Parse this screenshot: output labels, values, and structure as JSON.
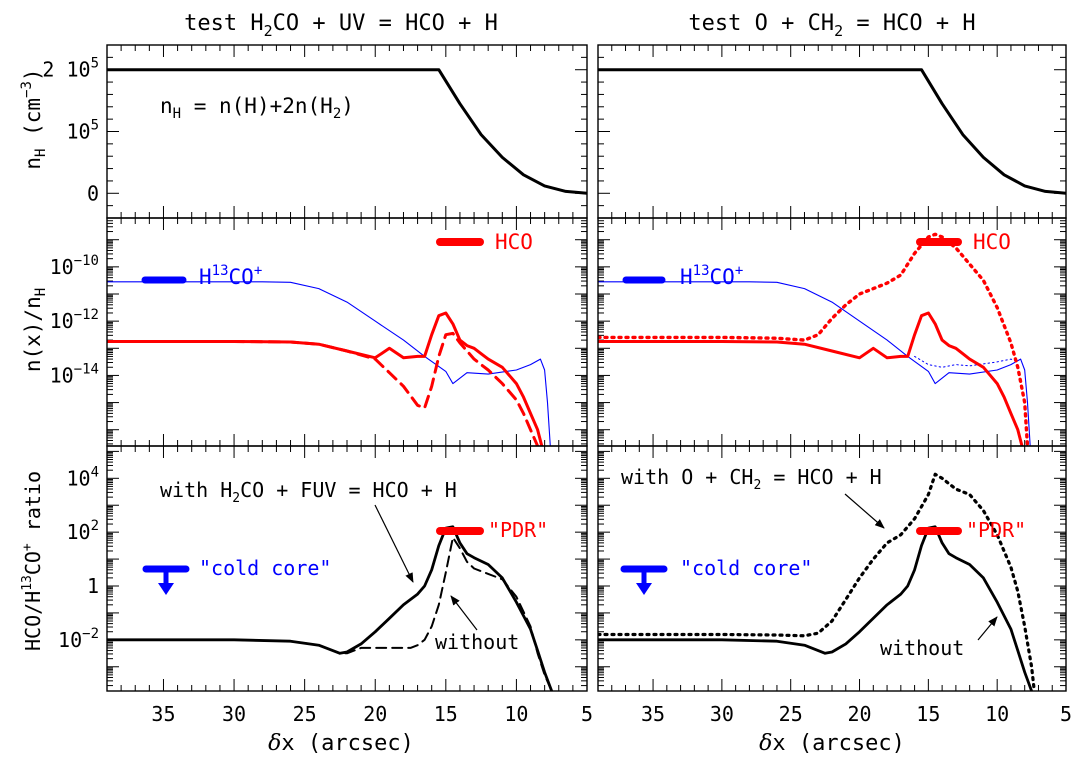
{
  "figure": {
    "col_titles": [
      {
        "pre": "test H",
        "sub": "2",
        "post": "CO + UV = HCO + H"
      },
      {
        "pre": "test O + CH",
        "sub": "2",
        "post": " = HCO + H"
      }
    ],
    "xlabel": {
      "delta": "δ",
      "rest": "x (arcsec)"
    },
    "row_ylabels": {
      "density": "n_H (cm^-3)",
      "abundance": "n(x)/n_H",
      "ratio": "HCO/H^13CO^+ ratio"
    },
    "x_ticklabels": [
      "35",
      "30",
      "25",
      "20",
      "15",
      "10",
      "5"
    ],
    "density_ticklabels": [
      {
        "v": 2,
        "m": "2 10",
        "e": "5"
      },
      {
        "v": 1,
        "m": "10",
        "e": "5"
      },
      {
        "v": 0,
        "m": "0",
        "e": ""
      }
    ],
    "abundance_ticklabels": [
      {
        "v": -10,
        "m": "10",
        "e": "−10"
      },
      {
        "v": -12,
        "m": "10",
        "e": "−12"
      },
      {
        "v": -14,
        "m": "10",
        "e": "−14"
      }
    ],
    "ratio_ticklabels": [
      {
        "v": 4,
        "m": "10",
        "e": "4"
      },
      {
        "v": 2,
        "m": "10",
        "e": "2"
      },
      {
        "v": 0,
        "m": "1",
        "e": ""
      },
      {
        "v": -2,
        "m": "10",
        "e": "−2"
      }
    ],
    "nH_annotation": "n_H = n(H)+2n(H_2)",
    "legend_hco": "HCO",
    "legend_h13co": "H^13CO^+",
    "pdr_label": "\"PDR\"",
    "cold_core_label": "\"cold core\"",
    "with_left": {
      "pre": "with H",
      "sub": "2",
      "post": "CO + FUV = HCO + H"
    },
    "with_right": {
      "pre": "with O + CH",
      "sub": "2",
      "post": " = HCO + H"
    },
    "without_label": "without",
    "colors": {
      "hco": "#ff0000",
      "h13co": "#0000ff",
      "ratio": "#000000",
      "axes": "#000000"
    }
  },
  "chart_data": [
    {
      "type": "line",
      "panel": "left-top",
      "title": "test H2CO + UV = HCO + H",
      "ylabel": "n_H (cm^-3)",
      "xlabel": "δx (arcsec)",
      "xlim": [
        39,
        5
      ],
      "ylim": [
        -0.4,
        2.4
      ],
      "y_unit": "1e5 cm^-3",
      "series": [
        {
          "name": "n_H",
          "x": [
            39,
            20,
            17,
            15.5,
            14,
            12.5,
            11,
            9.5,
            8,
            6.5,
            5
          ],
          "y": [
            2,
            2,
            2,
            2,
            1.45,
            0.95,
            0.58,
            0.3,
            0.12,
            0.03,
            0.0
          ]
        }
      ]
    },
    {
      "type": "line",
      "panel": "left-middle",
      "ylabel": "n(x)/n_H",
      "xlabel": "δx (arcsec)",
      "xlim": [
        39,
        5
      ],
      "ylim_log10": [
        -16.6,
        -8.2
      ],
      "series": [
        {
          "name": "H13CO+",
          "x": [
            39,
            28,
            26,
            24,
            22,
            20,
            18,
            16.5,
            15,
            14.5,
            13.5,
            12,
            10,
            9,
            8.3,
            8.0,
            7.8,
            7.6
          ],
          "y": [
            -10.55,
            -10.55,
            -10.57,
            -10.8,
            -11.3,
            -12.0,
            -12.7,
            -13.3,
            -13.85,
            -14.3,
            -13.9,
            -13.95,
            -13.8,
            -13.6,
            -13.4,
            -13.8,
            -15.0,
            -16.6
          ]
        },
        {
          "name": "HCO (with)",
          "x": [
            39,
            30,
            26,
            24,
            22,
            20,
            19,
            18,
            17,
            16.5,
            16,
            15.5,
            15,
            14.5,
            14,
            13.5,
            13,
            12.5,
            12,
            11,
            10,
            9.5,
            9,
            8.5,
            8.2
          ],
          "y": [
            -12.75,
            -12.75,
            -12.77,
            -12.85,
            -13.1,
            -13.35,
            -13.0,
            -13.35,
            -13.3,
            -13.3,
            -12.5,
            -11.8,
            -11.7,
            -12.1,
            -12.7,
            -12.9,
            -13.0,
            -13.2,
            -13.4,
            -13.7,
            -14.3,
            -14.8,
            -15.4,
            -16.0,
            -16.6
          ]
        },
        {
          "name": "HCO (without)",
          "x": [
            39,
            30,
            26,
            24,
            22,
            20,
            19,
            18,
            17,
            16.5,
            16,
            15.5,
            15,
            14.5,
            14,
            13.5,
            13,
            12.5,
            12,
            11,
            10,
            9.5,
            9,
            8.5
          ],
          "y": [
            -12.75,
            -12.75,
            -12.77,
            -12.85,
            -13.1,
            -13.4,
            -13.9,
            -14.4,
            -15.1,
            -15.2,
            -14.4,
            -13.3,
            -12.5,
            -12.45,
            -12.8,
            -13.1,
            -13.4,
            -13.6,
            -13.8,
            -14.3,
            -14.9,
            -15.4,
            -16.0,
            -16.6
          ]
        }
      ]
    },
    {
      "type": "line",
      "panel": "left-bottom",
      "ylabel": "HCO/H13CO+ ratio",
      "xlabel": "δx (arcsec)",
      "xlim": [
        39,
        5
      ],
      "ylim_log10": [
        -3.9,
        5.2
      ],
      "series": [
        {
          "name": "with",
          "x": [
            39,
            30,
            26,
            24,
            22.5,
            22,
            21,
            20,
            19,
            18,
            17,
            16.5,
            16,
            15.5,
            15,
            14.5,
            14,
            13.5,
            13,
            12,
            11,
            10,
            9,
            8.5,
            8,
            7.5
          ],
          "y": [
            -2.0,
            -2.0,
            -2.05,
            -2.2,
            -2.5,
            -2.45,
            -2.15,
            -1.7,
            -1.2,
            -0.7,
            -0.3,
            0.0,
            0.6,
            1.5,
            2.15,
            2.2,
            1.6,
            1.2,
            1.05,
            0.8,
            0.3,
            -0.6,
            -1.6,
            -2.4,
            -3.2,
            -3.9
          ]
        },
        {
          "name": "without",
          "x": [
            39,
            30,
            26,
            24,
            22.5,
            22,
            21,
            20,
            19,
            18,
            17.5,
            17,
            16.5,
            16,
            15.5,
            15,
            14.5,
            14,
            13.5,
            13,
            12,
            11,
            10,
            9,
            8.5,
            8,
            7.5
          ],
          "y": [
            -2.0,
            -2.0,
            -2.05,
            -2.2,
            -2.5,
            -2.5,
            -2.3,
            -2.3,
            -2.3,
            -2.3,
            -2.3,
            -2.2,
            -2.0,
            -1.5,
            -0.7,
            0.5,
            1.8,
            1.4,
            0.9,
            0.65,
            0.45,
            0.25,
            -0.4,
            -1.5,
            -2.5,
            -3.3,
            -3.9
          ]
        }
      ]
    },
    {
      "type": "line",
      "panel": "right-top",
      "title": "test O + CH2 = HCO + H",
      "xlabel": "δx (arcsec)",
      "xlim": [
        39,
        5
      ],
      "ylim": [
        -0.4,
        2.4
      ],
      "y_unit": "1e5 cm^-3",
      "series": [
        {
          "name": "n_H",
          "x": [
            39,
            20,
            17,
            15.5,
            14,
            12.5,
            11,
            9.5,
            8,
            6.5,
            5
          ],
          "y": [
            2,
            2,
            2,
            2,
            1.45,
            0.95,
            0.58,
            0.3,
            0.12,
            0.03,
            0.0
          ]
        }
      ]
    },
    {
      "type": "line",
      "panel": "right-middle",
      "xlabel": "δx (arcsec)",
      "xlim": [
        39,
        5
      ],
      "ylim_log10": [
        -16.6,
        -8.2
      ],
      "series": [
        {
          "name": "H13CO+",
          "x": [
            39,
            28,
            26,
            24,
            22,
            20,
            18,
            16.5,
            15,
            14.5,
            13.5,
            12,
            10,
            9,
            8.3,
            8.0,
            7.8,
            7.6
          ],
          "y": [
            -10.55,
            -10.55,
            -10.57,
            -10.8,
            -11.3,
            -12.0,
            -12.7,
            -13.3,
            -13.85,
            -14.3,
            -13.9,
            -13.95,
            -13.8,
            -13.6,
            -13.4,
            -13.8,
            -15.0,
            -16.6
          ]
        },
        {
          "name": "H13CO+ (with O+CH2)",
          "x": [
            16,
            15,
            14,
            13,
            12,
            10,
            9,
            8.5
          ],
          "y": [
            -13.3,
            -13.6,
            -13.7,
            -13.6,
            -13.65,
            -13.5,
            -13.4,
            -13.5
          ]
        },
        {
          "name": "HCO (without)",
          "x": [
            39,
            30,
            26,
            24,
            22,
            20,
            19,
            18,
            17,
            16.5,
            16,
            15.5,
            15,
            14.5,
            14,
            13.5,
            13,
            12.5,
            12,
            11,
            10,
            9.5,
            9,
            8.5,
            8.2
          ],
          "y": [
            -12.75,
            -12.75,
            -12.77,
            -12.85,
            -13.1,
            -13.35,
            -13.0,
            -13.35,
            -13.3,
            -13.3,
            -12.5,
            -11.8,
            -11.7,
            -12.1,
            -12.7,
            -12.9,
            -13.0,
            -13.2,
            -13.4,
            -13.7,
            -14.3,
            -14.8,
            -15.4,
            -16.0,
            -16.6
          ]
        },
        {
          "name": "HCO (with O+CH2)",
          "x": [
            39,
            30,
            26,
            24,
            23,
            22,
            21,
            20,
            19,
            18,
            17,
            16,
            15,
            14.5,
            14,
            13,
            12,
            11,
            10,
            9,
            8.5,
            8.0,
            7.8
          ],
          "y": [
            -12.6,
            -12.6,
            -12.63,
            -12.7,
            -12.5,
            -11.9,
            -11.4,
            -11.0,
            -10.8,
            -10.6,
            -10.3,
            -9.5,
            -8.9,
            -8.8,
            -8.9,
            -9.3,
            -9.9,
            -10.5,
            -11.5,
            -12.8,
            -13.7,
            -15.0,
            -16.6
          ]
        }
      ]
    },
    {
      "type": "line",
      "panel": "right-bottom",
      "xlabel": "δx (arcsec)",
      "xlim": [
        39,
        5
      ],
      "ylim_log10": [
        -3.9,
        5.2
      ],
      "series": [
        {
          "name": "without",
          "x": [
            39,
            30,
            26,
            24,
            22.5,
            22,
            21,
            20,
            19,
            18,
            17,
            16.5,
            16,
            15.5,
            15,
            14.5,
            14,
            13.5,
            13,
            12,
            11,
            10,
            9,
            8.5,
            8,
            7.5
          ],
          "y": [
            -2.0,
            -2.0,
            -2.05,
            -2.2,
            -2.5,
            -2.45,
            -2.15,
            -1.7,
            -1.2,
            -0.7,
            -0.3,
            0.0,
            0.6,
            1.5,
            2.15,
            2.2,
            1.6,
            1.2,
            1.05,
            0.8,
            0.3,
            -0.6,
            -1.6,
            -2.4,
            -3.2,
            -3.9
          ]
        },
        {
          "name": "with O+CH2",
          "x": [
            39,
            30,
            26,
            24,
            23,
            22,
            21,
            20,
            19,
            18,
            17,
            16,
            15,
            14.5,
            14,
            13.5,
            13,
            12,
            11,
            10,
            9,
            8.5,
            8,
            7.5,
            7.3
          ],
          "y": [
            -1.8,
            -1.8,
            -1.82,
            -1.85,
            -1.75,
            -1.3,
            -0.5,
            0.3,
            1.0,
            1.6,
            1.9,
            2.5,
            3.4,
            4.15,
            4.0,
            3.8,
            3.6,
            3.4,
            2.8,
            1.9,
            0.7,
            -0.2,
            -1.5,
            -3.0,
            -3.9
          ]
        }
      ]
    }
  ]
}
